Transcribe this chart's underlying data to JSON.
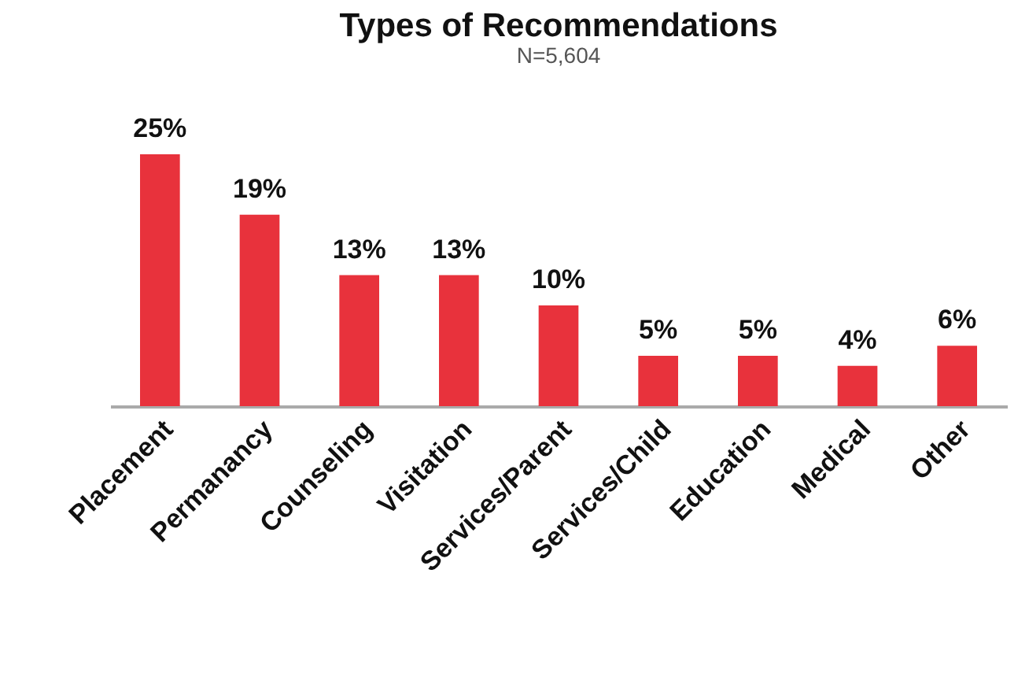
{
  "chart_data": {
    "type": "bar",
    "title": "Types of Recommendations",
    "subtitle": "N=5,604",
    "categories": [
      "Placement",
      "Permanancy",
      "Counseling",
      "Visitation",
      "Services/Parent",
      "Services/Child",
      "Education",
      "Medical",
      "Other"
    ],
    "values": [
      25,
      19,
      13,
      13,
      10,
      5,
      5,
      4,
      6
    ],
    "value_labels": [
      "25%",
      "19%",
      "13%",
      "13%",
      "10%",
      "5%",
      "5%",
      "4%",
      "6%"
    ],
    "color": "#e8323c"
  }
}
